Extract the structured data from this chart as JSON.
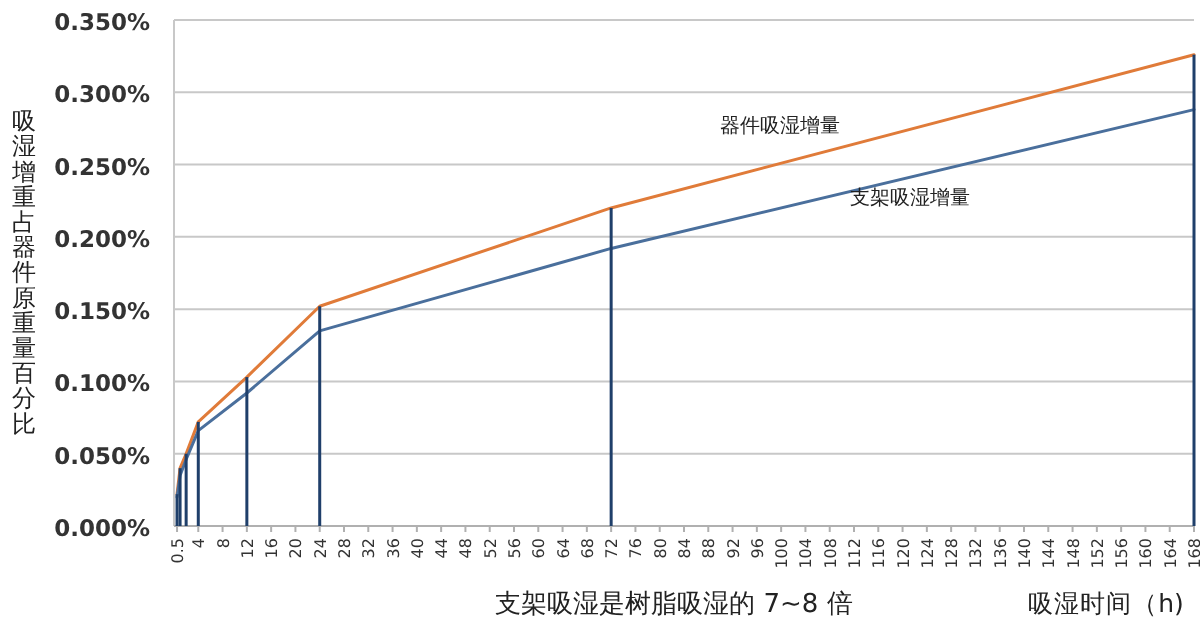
{
  "chart_data": {
    "type": "line",
    "xlabel": "吸湿时间（h)",
    "ylabel": "吸湿增重占器件原重量百分比",
    "annotations": [
      "支架吸湿是树脂吸湿的 7~8 倍"
    ],
    "x": [
      0.5,
      1,
      2,
      4,
      12,
      24,
      72,
      168
    ],
    "series": [
      {
        "name": "器件吸湿增量",
        "color": "#e07b39",
        "values": [
          0.022,
          0.04,
          0.05,
          0.072,
          0.103,
          0.152,
          0.22,
          0.326
        ]
      },
      {
        "name": "支架吸湿增量",
        "color": "#4a6f9c",
        "values": [
          0.02,
          0.035,
          0.046,
          0.066,
          0.092,
          0.135,
          0.192,
          0.288
        ]
      },
      {
        "type": "bar",
        "color": "#1f3f6a",
        "values": [
          0.022,
          0.04,
          0.05,
          0.072,
          0.103,
          0.152,
          0.22,
          0.326
        ]
      }
    ],
    "xlim": [
      0,
      168
    ],
    "xticks": [
      0.5,
      4,
      8,
      12,
      16,
      20,
      24,
      28,
      32,
      36,
      40,
      44,
      48,
      52,
      56,
      60,
      64,
      68,
      72,
      76,
      80,
      84,
      88,
      92,
      96,
      100,
      104,
      108,
      112,
      116,
      120,
      124,
      128,
      132,
      136,
      140,
      144,
      148,
      152,
      156,
      160,
      164,
      168
    ],
    "ylim": [
      0,
      0.35
    ],
    "yticks": [
      {
        "value": 0,
        "label": "0.000%"
      },
      {
        "value": 0.05,
        "label": "0.050%"
      },
      {
        "value": 0.1,
        "label": "0.100%"
      },
      {
        "value": 0.15,
        "label": "0.150%"
      },
      {
        "value": 0.2,
        "label": "0.200%"
      },
      {
        "value": 0.25,
        "label": "0.250%"
      },
      {
        "value": 0.3,
        "label": "0.300%"
      },
      {
        "value": 0.35,
        "label": "0.350%"
      }
    ],
    "grid": "y",
    "marker": "none",
    "line_style": "solid"
  }
}
